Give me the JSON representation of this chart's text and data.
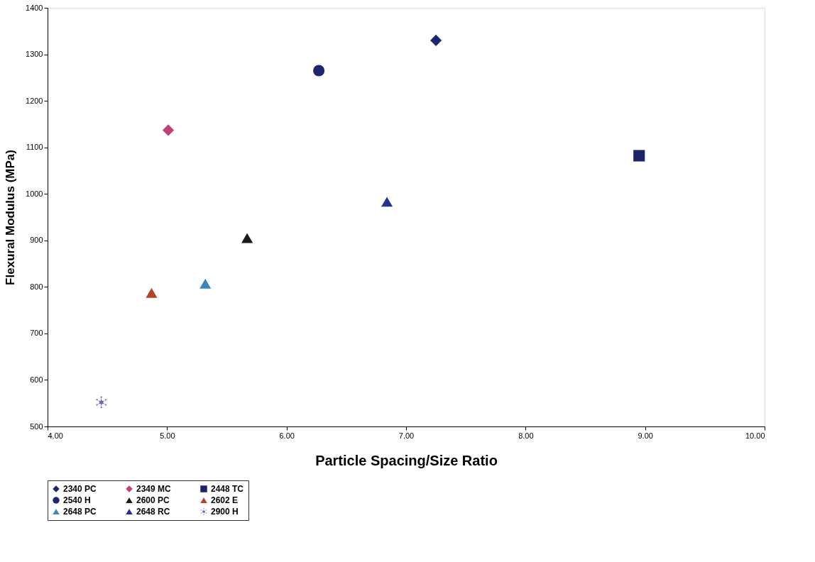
{
  "chart_data": {
    "type": "scatter",
    "xlabel": "Particle Spacing/Size Ratio",
    "ylabel": "Flexural Modulus (MPa)",
    "xlim": [
      4,
      10
    ],
    "xticks": [
      {
        "value": 4,
        "label": "4.00"
      },
      {
        "value": 5,
        "label": "5.00"
      },
      {
        "value": 6,
        "label": "6.00"
      },
      {
        "value": 7,
        "label": "7.00"
      },
      {
        "value": 8,
        "label": "8.00"
      },
      {
        "value": 9,
        "label": "9.00"
      },
      {
        "value": 10,
        "label": "10.00"
      }
    ],
    "ylim": [
      500,
      1400
    ],
    "yticks": [
      500,
      600,
      700,
      800,
      900,
      1000,
      1100,
      1200,
      1300,
      1400
    ],
    "grid": false,
    "legend": "bottom",
    "series": [
      {
        "name": "2340 PC",
        "color": "#1f2670",
        "marker": "diamond",
        "x": [
          7.25
        ],
        "values": [
          1330
        ]
      },
      {
        "name": "2349 MC",
        "color": "#c0407a",
        "marker": "diamond",
        "x": [
          5.01
        ],
        "values": [
          1137
        ]
      },
      {
        "name": "2448 TC",
        "color": "#1c2468",
        "marker": "square",
        "x": [
          8.95
        ],
        "values": [
          1082
        ]
      },
      {
        "name": "2540 H",
        "color": "#1f2670",
        "marker": "circle",
        "x": [
          6.27
        ],
        "values": [
          1265
        ]
      },
      {
        "name": "2600 PC",
        "color": "#1a1a1a",
        "marker": "triangle",
        "x": [
          5.67
        ],
        "values": [
          905
        ]
      },
      {
        "name": "2602 E",
        "color": "#b5432a",
        "marker": "triangle",
        "x": [
          4.87
        ],
        "values": [
          787
        ]
      },
      {
        "name": "2648 PC",
        "color": "#3a86c0",
        "marker": "triangle",
        "x": [
          5.32
        ],
        "values": [
          807
        ]
      },
      {
        "name": "2648 RC",
        "color": "#26308e",
        "marker": "triangle",
        "x": [
          6.84
        ],
        "values": [
          983
        ]
      },
      {
        "name": "2900 H",
        "color": "#6a6ab0",
        "marker": "cross",
        "x": [
          4.45
        ],
        "values": [
          552
        ]
      }
    ]
  }
}
